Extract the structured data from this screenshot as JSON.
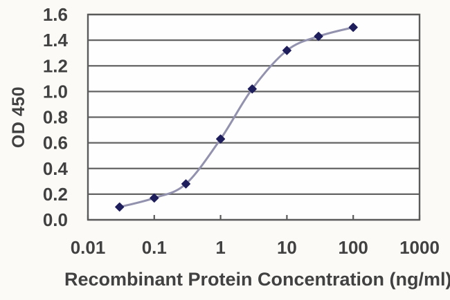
{
  "chart_data": {
    "type": "line",
    "title": "",
    "xlabel": "Recombinant Protein Concentration (ng/ml)",
    "ylabel": "OD 450",
    "x_scale": "log",
    "xlim": [
      0.01,
      1000
    ],
    "ylim": [
      0,
      1.6
    ],
    "x_ticks": [
      0.01,
      0.1,
      1,
      10,
      100,
      1000
    ],
    "x_tick_labels": [
      "0.01",
      "0.1",
      "1",
      "10",
      "100",
      "1000"
    ],
    "y_ticks": [
      0,
      0.2,
      0.4,
      0.6,
      0.8,
      1.0,
      1.2,
      1.4,
      1.6
    ],
    "y_tick_labels": [
      "0.0",
      "0.2",
      "0.4",
      "0.6",
      "0.8",
      "1.0",
      "1.2",
      "1.4",
      "1.6"
    ],
    "grid": "horizontal",
    "legend": "none",
    "series": [
      {
        "name": "OD 450",
        "marker": "diamond",
        "line_style": "smooth",
        "x": [
          0.03,
          0.1,
          0.3,
          1,
          3,
          10,
          30,
          100
        ],
        "y": [
          0.1,
          0.17,
          0.28,
          0.63,
          1.02,
          1.32,
          1.43,
          1.5
        ]
      }
    ]
  },
  "colors": {
    "background": "#fbfaf6",
    "plot_background": "#fefefe",
    "axis": "#5a5a5a",
    "gridline": "#636363",
    "tick": "#5a5a5a",
    "text": "#414141",
    "line": "#9292ae",
    "marker": "#1e1e5c"
  }
}
